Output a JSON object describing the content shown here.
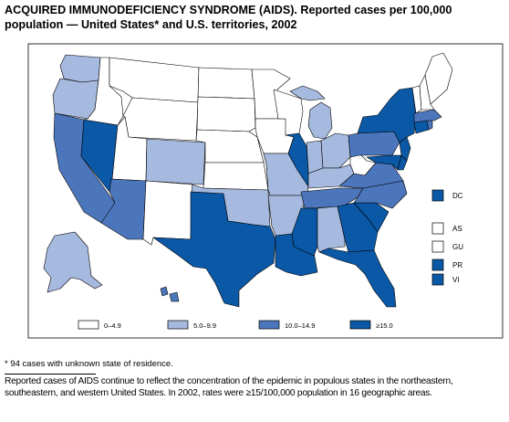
{
  "title": {
    "line1": "ACQUIRED IMMUNODEFICIENCY SYNDROME (AIDS). Reported cases per 100,000",
    "line2": "population — United States* and U.S. territories, 2002"
  },
  "colors": {
    "0-4.9": "#ffffff",
    "5.0-9.9": "#a6b9de",
    "10.0-14.9": "#4c76bb",
    "15.0+": "#0a58a6",
    "outline": "#000000"
  },
  "legend": {
    "items": [
      {
        "label": "0–4.9",
        "class": "0-4.9"
      },
      {
        "label": "5.0–9.9",
        "class": "5.0-9.9"
      },
      {
        "label": "10.0–14.9",
        "class": "10.0-14.9"
      },
      {
        "label": "≥15.0",
        "class": "15.0+"
      }
    ]
  },
  "territories": [
    {
      "label": "DC",
      "class": "15.0+"
    },
    {
      "label": "AS",
      "class": "0-4.9"
    },
    {
      "label": "GU",
      "class": "0-4.9"
    },
    {
      "label": "PR",
      "class": "15.0+"
    },
    {
      "label": "VI",
      "class": "15.0+"
    }
  ],
  "states": {
    "WA": "5.0-9.9",
    "OR": "5.0-9.9",
    "CA": "10.0-14.9",
    "NV": "15.0+",
    "ID": "0-4.9",
    "MT": "0-4.9",
    "WY": "0-4.9",
    "UT": "0-4.9",
    "AZ": "10.0-14.9",
    "CO": "5.0-9.9",
    "NM": "0-4.9",
    "ND": "0-4.9",
    "SD": "0-4.9",
    "NE": "0-4.9",
    "KS": "0-4.9",
    "OK": "5.0-9.9",
    "TX": "15.0+",
    "MN": "0-4.9",
    "IA": "0-4.9",
    "MO": "5.0-9.9",
    "AR": "5.0-9.9",
    "LA": "15.0+",
    "WI": "0-4.9",
    "IL": "15.0+",
    "MI": "5.0-9.9",
    "IN": "5.0-9.9",
    "OH": "5.0-9.9",
    "KY": "5.0-9.9",
    "TN": "10.0-14.9",
    "MS": "15.0+",
    "AL": "5.0-9.9",
    "GA": "15.0+",
    "FL": "15.0+",
    "SC": "15.0+",
    "NC": "10.0-14.9",
    "VA": "10.0-14.9",
    "WV": "0-4.9",
    "PA": "10.0-14.9",
    "NY": "15.0+",
    "NJ": "15.0+",
    "DE": "15.0+",
    "MD": "15.0+",
    "CT": "15.0+",
    "RI": "10.0-14.9",
    "MA": "10.0-14.9",
    "VT": "0-4.9",
    "NH": "0-4.9",
    "ME": "0-4.9",
    "AK": "5.0-9.9",
    "HI": "10.0-14.9"
  },
  "footnote": "* 94 cases with unknown state of residence.",
  "summary": "Reported cases of AIDS continue to reflect the concentration of the epidemic in populous states in the northeastern, southeastern, and western United States. In 2002, rates were ≥15/100,000 population in 16 geographic areas."
}
